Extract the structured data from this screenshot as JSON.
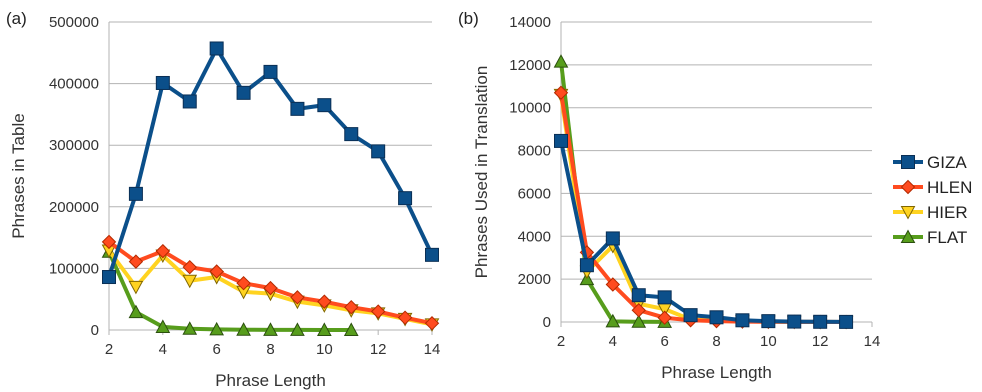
{
  "chart_data": [
    {
      "type": "line",
      "panel_label": "(a)",
      "xlabel": "Phrase Length",
      "ylabel": "Phrases in Table",
      "xlim": [
        2,
        14
      ],
      "ylim": [
        0,
        500000
      ],
      "xticks": [
        2,
        4,
        6,
        8,
        10,
        12,
        14
      ],
      "yticks": [
        0,
        100000,
        200000,
        300000,
        400000,
        500000
      ],
      "grid": "horizontal",
      "series": [
        {
          "name": "GIZA",
          "x": [
            2,
            3,
            4,
            5,
            6,
            7,
            8,
            9,
            10,
            11,
            12,
            13,
            14
          ],
          "y": [
            86000,
            221000,
            401000,
            371000,
            457000,
            385000,
            419000,
            359000,
            365000,
            318000,
            290000,
            214000,
            122000
          ]
        },
        {
          "name": "HLEN",
          "x": [
            2,
            3,
            4,
            5,
            6,
            7,
            8,
            9,
            10,
            11,
            12,
            13,
            14
          ],
          "y": [
            143000,
            111000,
            128000,
            102000,
            95000,
            76000,
            68000,
            53000,
            46000,
            37000,
            30000,
            20000,
            11000
          ]
        },
        {
          "name": "HIER",
          "x": [
            2,
            3,
            4,
            5,
            6,
            7,
            8,
            9,
            10,
            11,
            12,
            13,
            14
          ],
          "y": [
            129000,
            70000,
            121000,
            80000,
            86000,
            62000,
            59000,
            46000,
            40000,
            32000,
            27000,
            18000,
            9000
          ]
        },
        {
          "name": "FLAT",
          "x": [
            2,
            3,
            4,
            5,
            6,
            7,
            8,
            9,
            10,
            11
          ],
          "y": [
            127000,
            29000,
            5000,
            2000,
            1000,
            500,
            300,
            200,
            100,
            100
          ]
        }
      ]
    },
    {
      "type": "line",
      "panel_label": "(b)",
      "xlabel": "Phrase Length",
      "ylabel": "Phrases Used in Translation",
      "xlim": [
        2,
        14
      ],
      "ylim": [
        0,
        14000
      ],
      "xticks": [
        2,
        4,
        6,
        8,
        10,
        12,
        14
      ],
      "yticks": [
        0,
        2000,
        4000,
        6000,
        8000,
        10000,
        12000,
        14000
      ],
      "grid": "horizontal",
      "series": [
        {
          "name": "GIZA",
          "x": [
            2,
            3,
            4,
            5,
            6,
            7,
            8,
            9,
            10,
            11,
            12,
            13
          ],
          "y": [
            8450,
            2650,
            3900,
            1250,
            1150,
            320,
            220,
            80,
            40,
            20,
            10,
            5
          ]
        },
        {
          "name": "HLEN",
          "x": [
            2,
            3,
            4,
            5,
            6,
            7,
            8,
            9,
            10,
            11,
            12,
            13
          ],
          "y": [
            10700,
            3250,
            1750,
            550,
            200,
            80,
            40,
            20,
            10,
            5,
            3,
            2
          ]
        },
        {
          "name": "HIER",
          "x": [
            2,
            3,
            4,
            5,
            6,
            7,
            8,
            9,
            10,
            11,
            12,
            13
          ],
          "y": [
            10600,
            2350,
            3550,
            850,
            600,
            120,
            60,
            30,
            15,
            8,
            4,
            2
          ]
        },
        {
          "name": "FLAT",
          "x": [
            2,
            3,
            4,
            5,
            6
          ],
          "y": [
            12150,
            2000,
            30,
            10,
            5
          ]
        }
      ]
    }
  ],
  "legend": {
    "placement": "right",
    "items": [
      "GIZA",
      "HLEN",
      "HIER",
      "FLAT"
    ]
  },
  "styles": {
    "GIZA": {
      "line": "#0b4f8a",
      "fill": "#0b4f8a",
      "marker": "square"
    },
    "HLEN": {
      "line": "#ff4b1f",
      "fill": "#ff4b1f",
      "marker": "diamond"
    },
    "HIER": {
      "line": "#ffd320",
      "fill": "#ffd320",
      "marker": "triangle-down"
    },
    "FLAT": {
      "line": "#579d1c",
      "fill": "#579d1c",
      "marker": "triangle-up"
    },
    "grid_color": "#b3b3b3",
    "axis_color": "#b3b3b3"
  }
}
